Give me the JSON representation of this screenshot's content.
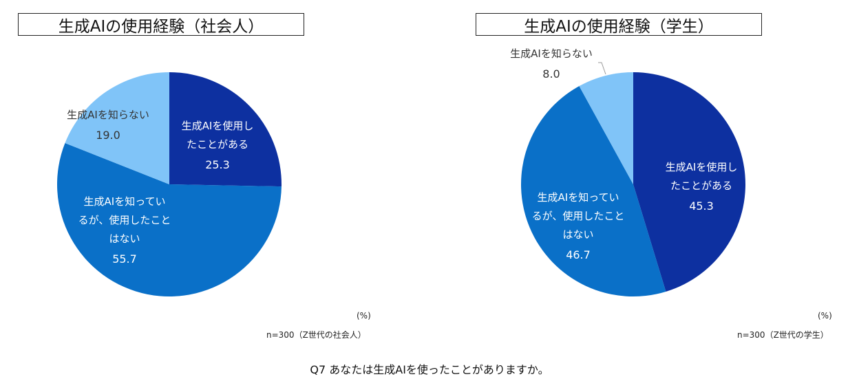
{
  "colors": {
    "used": "#0d30a0",
    "known": "#0a70c8",
    "unknown": "#80c4f8"
  },
  "question": "Q7 あなたは生成AIを使ったことがありますか。",
  "chart_data": [
    {
      "type": "pie",
      "title": "生成AIの使用経験（社会人）",
      "unit": "(%)",
      "n_note": "n=300（Z世代の社会人）",
      "slices": [
        {
          "label": "生成AIを使用したことがある",
          "lines": [
            "生成AIを使用し",
            "たことがある"
          ],
          "value": 25.3,
          "value_text": "25.3",
          "color": "#0d30a0"
        },
        {
          "label": "生成AIを知っているが、使用したことはない",
          "lines": [
            "生成AIを知ってい",
            "るが、使用したこと",
            "はない"
          ],
          "value": 55.7,
          "value_text": "55.7",
          "color": "#0a70c8"
        },
        {
          "label": "生成AIを知らない",
          "lines": [
            "生成AIを知らない"
          ],
          "value": 19.0,
          "value_text": "19.0",
          "color": "#80c4f8"
        }
      ]
    },
    {
      "type": "pie",
      "title": "生成AIの使用経験（学生）",
      "unit": "(%)",
      "n_note": "n=300（Z世代の学生）",
      "slices": [
        {
          "label": "生成AIを使用したことがある",
          "lines": [
            "生成AIを使用し",
            "たことがある"
          ],
          "value": 45.3,
          "value_text": "45.3",
          "color": "#0d30a0"
        },
        {
          "label": "生成AIを知っているが、使用したことはない",
          "lines": [
            "生成AIを知ってい",
            "るが、使用したこと",
            "はない"
          ],
          "value": 46.7,
          "value_text": "46.7",
          "color": "#0a70c8"
        },
        {
          "label": "生成AIを知らない",
          "lines": [
            "生成AIを知らない"
          ],
          "value": 8.0,
          "value_text": "8.0",
          "color": "#80c4f8"
        }
      ]
    }
  ]
}
